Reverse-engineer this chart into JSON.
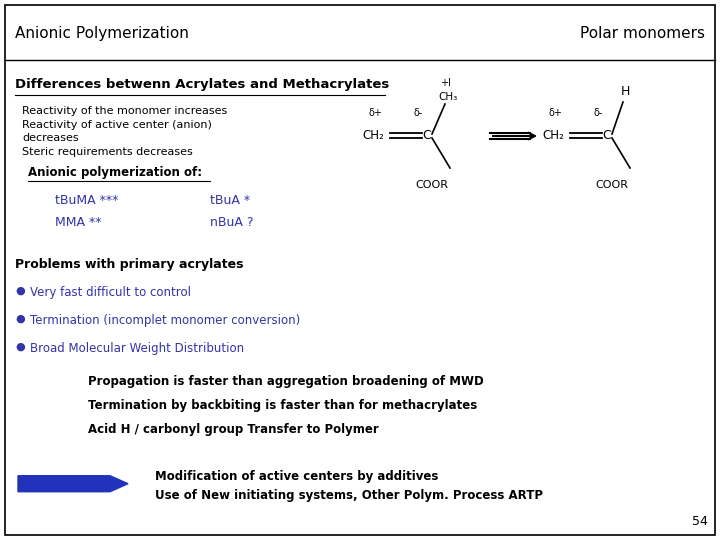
{
  "title_left": "Anionic Polymerization",
  "title_right": "Polar monomers",
  "section_title": "Differences betwenn Acrylates and Methacrylates",
  "reactivity_lines": [
    "Reactivity of the monomer increases",
    "Reactivity of active center (anion)",
    "decreases",
    "Steric requirements decreases"
  ],
  "anionic_label": "Anionic polymerization of:",
  "col1_items": [
    "tBuMA ***",
    "MMA **"
  ],
  "col2_items": [
    "tBuA *",
    "nBuA ?"
  ],
  "problems_title": "Problems with primary acrylates",
  "bullet_items": [
    "Very fast difficult to control",
    "Termination (incomplet monomer conversion)",
    "Broad Molecular Weight Distribution"
  ],
  "indented_items": [
    "Propagation is faster than aggregation broadening of MWD",
    "Termination by backbiting is faster than for methacrylates",
    "Acid H / carbonyl group Transfer to Polymer"
  ],
  "arrow_text1": "Modification of active centers by additives",
  "arrow_text2": "Use of New initiating systems, Other Polym. Process ARTP",
  "page_number": "54",
  "colors": {
    "background": "#ffffff",
    "border": "#000000",
    "title_text": "#000000",
    "blue_text": "#3333aa",
    "black_text": "#000000",
    "arrow_color": "#2233bb",
    "bullet_color": "#3333aa"
  }
}
